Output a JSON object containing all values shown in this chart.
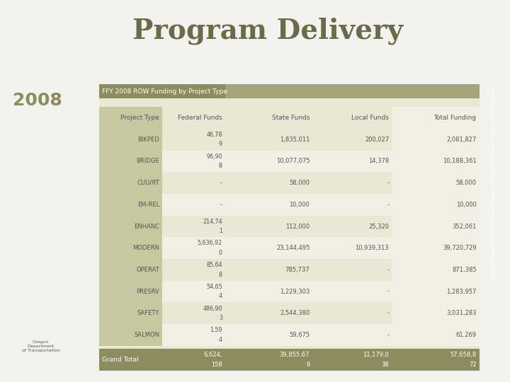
{
  "title": "Program Delivery",
  "year": "2008",
  "table_title": "FFY 2008 ROW Funding by Project Type",
  "columns": [
    "Project Type",
    "Federal Funds",
    "State Funds",
    "Local Funds",
    "Total Funding"
  ],
  "rows": [
    [
      "BIKPED",
      "46,78\n9",
      "1,835,011",
      "200,027",
      "2,081,827"
    ],
    [
      "BRIDGE",
      "96,90\n8",
      "10,077,075",
      "14,378",
      "10,188,361"
    ],
    [
      "CULVRT",
      "-",
      "58,000",
      "-",
      "58,000"
    ],
    [
      "EM-REL",
      "-",
      "10,000",
      "-",
      "10,000"
    ],
    [
      "ENHANC",
      "214,74\n1",
      "112,000",
      "25,320",
      "352,061"
    ],
    [
      "MODERN",
      "5,636,92\n0",
      "23,144,495",
      "10,939,313",
      "39,720,729"
    ],
    [
      "OPERAT",
      "85,64\n8",
      "785,737",
      "-",
      "871,385"
    ],
    [
      "PRESRV",
      "54,65\n4",
      "1,229,303",
      "-",
      "1,283,957"
    ],
    [
      "SAFETY",
      "486,90\n3",
      "2,544,380",
      "-",
      "3,031,283"
    ],
    [
      "SALMON",
      "1,59\n4",
      "59,675",
      "-",
      "61,269"
    ]
  ],
  "grand_total_line1": [
    "Grand Total",
    "6,624,",
    "39,855,67",
    "11,179,0",
    "57,658,8"
  ],
  "grand_total_line2": [
    "",
    "158",
    "6",
    "38",
    "72"
  ],
  "header_bg": "#8c8c5e",
  "header_alt_bg": "#a5a57a",
  "row_bg_dark": "#c8c8a0",
  "row_bg_light": "#e8e8d5",
  "row_bg_white": "#f0f0e5",
  "grand_total_bg": "#8c8c5e",
  "title_color": "#6b6b4a",
  "body_text_color": "#555555",
  "year_color": "#8c8c5e",
  "sidebar_color": "#8c8c5e",
  "sidebar_text": "Oregon Department of Transportation | Highway Division | Right of Way Section",
  "bg_color": "#f2f2ee"
}
